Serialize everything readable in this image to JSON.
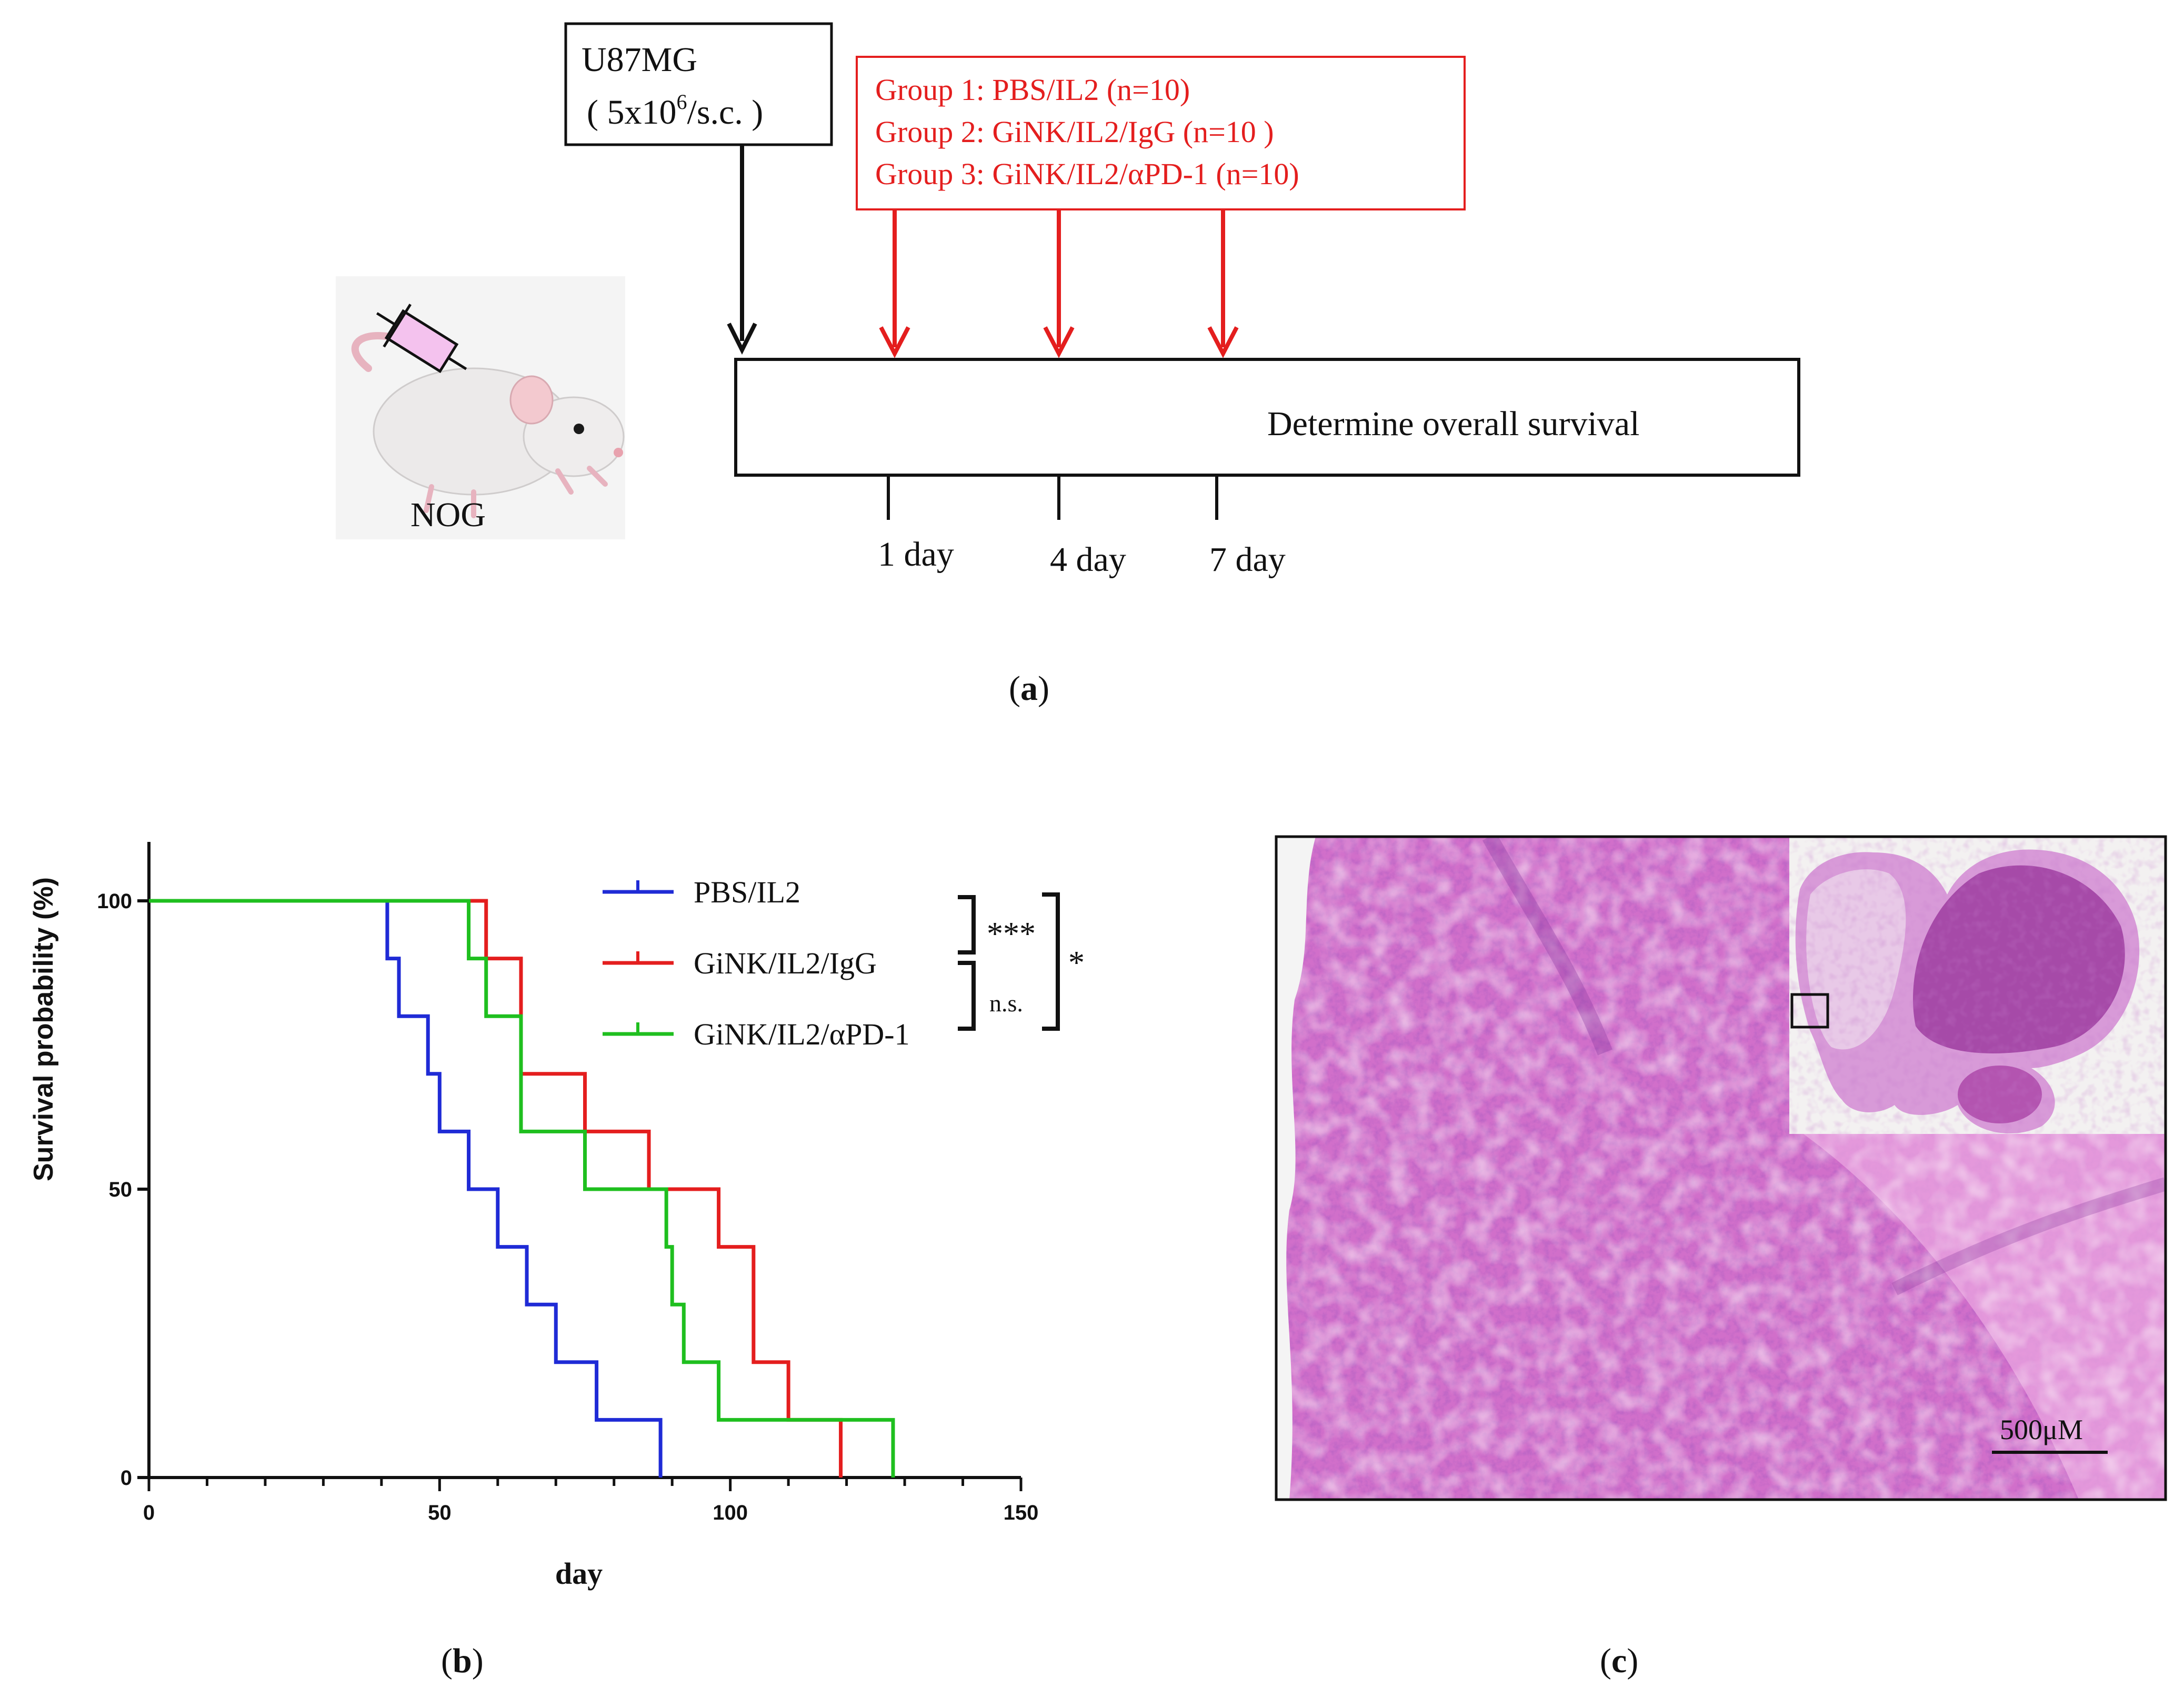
{
  "panel_a": {
    "cell_line": "U87MG",
    "dose_prefix": "( 5x10",
    "dose_exponent": "6",
    "dose_suffix": "/s.c. )",
    "groups": [
      "Group 1: PBS/IL2  (n=10)",
      "Group 2: GiNK/IL2/IgG (n=10 )",
      "Group 3: GiNK/IL2/αPD-1 (n=10)"
    ],
    "timeline_text": "Determine overall survival",
    "days": [
      "1 day",
      "4 day",
      "7 day"
    ],
    "mouse_label": "NOG",
    "caption_letter": "a"
  },
  "panel_b": {
    "caption_letter": "b"
  },
  "panel_c": {
    "scale_bar_label": "500μM",
    "caption_letter": "c"
  },
  "colors": {
    "blue": "#1f2bd6",
    "red": "#e41e1e",
    "green": "#1fbf1f",
    "black": "#111111",
    "he_base": "#c85fbf"
  },
  "chart_data": {
    "type": "line",
    "title": "",
    "xlabel": "day",
    "ylabel": "Survival probability (%)",
    "xlim": [
      0,
      150
    ],
    "ylim": [
      0,
      100
    ],
    "xticks": [
      0,
      50,
      100,
      150
    ],
    "yticks": [
      0,
      50,
      100
    ],
    "series": [
      {
        "name": "PBS/IL2",
        "color": "#1f2bd6",
        "steps": [
          [
            0,
            100
          ],
          [
            41,
            90
          ],
          [
            43,
            80
          ],
          [
            48,
            70
          ],
          [
            50,
            60
          ],
          [
            55,
            50
          ],
          [
            60,
            40
          ],
          [
            65,
            30
          ],
          [
            70,
            20
          ],
          [
            77,
            10
          ],
          [
            88,
            0
          ]
        ]
      },
      {
        "name": "GiNK/IL2/IgG",
        "color": "#e41e1e",
        "steps": [
          [
            0,
            100
          ],
          [
            58,
            90
          ],
          [
            64,
            70
          ],
          [
            75,
            60
          ],
          [
            86,
            50
          ],
          [
            98,
            40
          ],
          [
            104,
            20
          ],
          [
            110,
            10
          ],
          [
            119,
            0
          ]
        ]
      },
      {
        "name": "GiNK/IL2/αPD-1",
        "color": "#1fbf1f",
        "steps": [
          [
            0,
            100
          ],
          [
            55,
            90
          ],
          [
            58,
            80
          ],
          [
            64,
            60
          ],
          [
            75,
            50
          ],
          [
            89,
            40
          ],
          [
            90,
            30
          ],
          [
            92,
            20
          ],
          [
            98,
            10
          ],
          [
            128,
            0
          ]
        ]
      }
    ],
    "significance": [
      {
        "between": [
          "PBS/IL2",
          "GiNK/IL2/IgG"
        ],
        "label": "***"
      },
      {
        "between": [
          "GiNK/IL2/IgG",
          "GiNK/IL2/αPD-1"
        ],
        "label": "n.s."
      },
      {
        "between": [
          "PBS/IL2",
          "GiNK/IL2/αPD-1"
        ],
        "label": "*"
      }
    ]
  }
}
